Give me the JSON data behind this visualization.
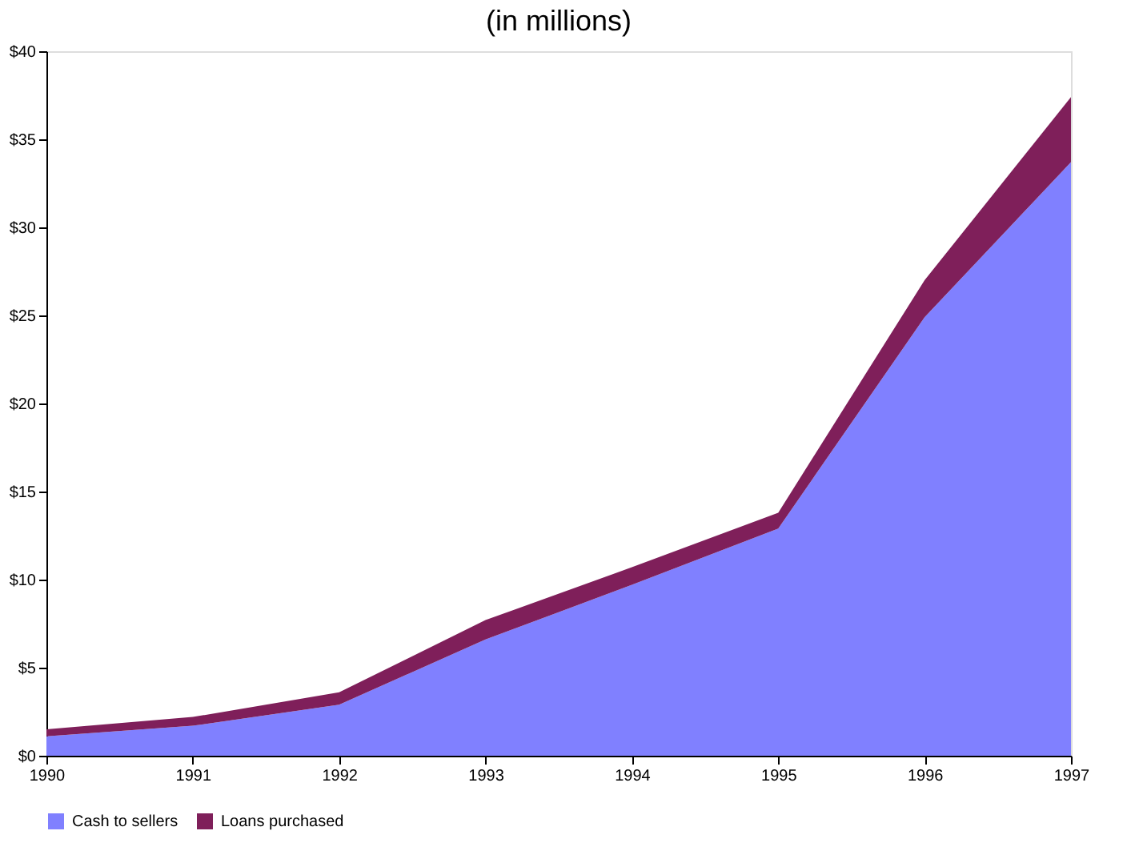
{
  "chart_data": {
    "type": "area",
    "title": "(in millions)",
    "stacked": true,
    "x": [
      1990,
      1991,
      1992,
      1993,
      1994,
      1995,
      1996,
      1997
    ],
    "series": [
      {
        "name": "Cash to sellers",
        "color": "#8080ff",
        "values": [
          1.1,
          1.7,
          2.9,
          6.6,
          9.7,
          12.9,
          24.9,
          33.7
        ]
      },
      {
        "name": "Loans purchased",
        "color": "#7f1f5a",
        "values": [
          0.4,
          0.5,
          0.7,
          1.1,
          1.0,
          0.9,
          2.1,
          3.7
        ]
      }
    ],
    "xlim": [
      1990,
      1997
    ],
    "xticks": [
      1990,
      1991,
      1992,
      1993,
      1994,
      1995,
      1996,
      1997
    ],
    "ylim": [
      0,
      40
    ],
    "yticks": [
      {
        "value": 0,
        "label": "$0"
      },
      {
        "value": 5,
        "label": "$5"
      },
      {
        "value": 10,
        "label": "$10"
      },
      {
        "value": 15,
        "label": "$15"
      },
      {
        "value": 20,
        "label": "$20"
      },
      {
        "value": 25,
        "label": "$25"
      },
      {
        "value": 30,
        "label": "$30"
      },
      {
        "value": 35,
        "label": "$35"
      },
      {
        "value": 40,
        "label": "$40"
      }
    ],
    "grid": false,
    "legend": "bottom"
  }
}
